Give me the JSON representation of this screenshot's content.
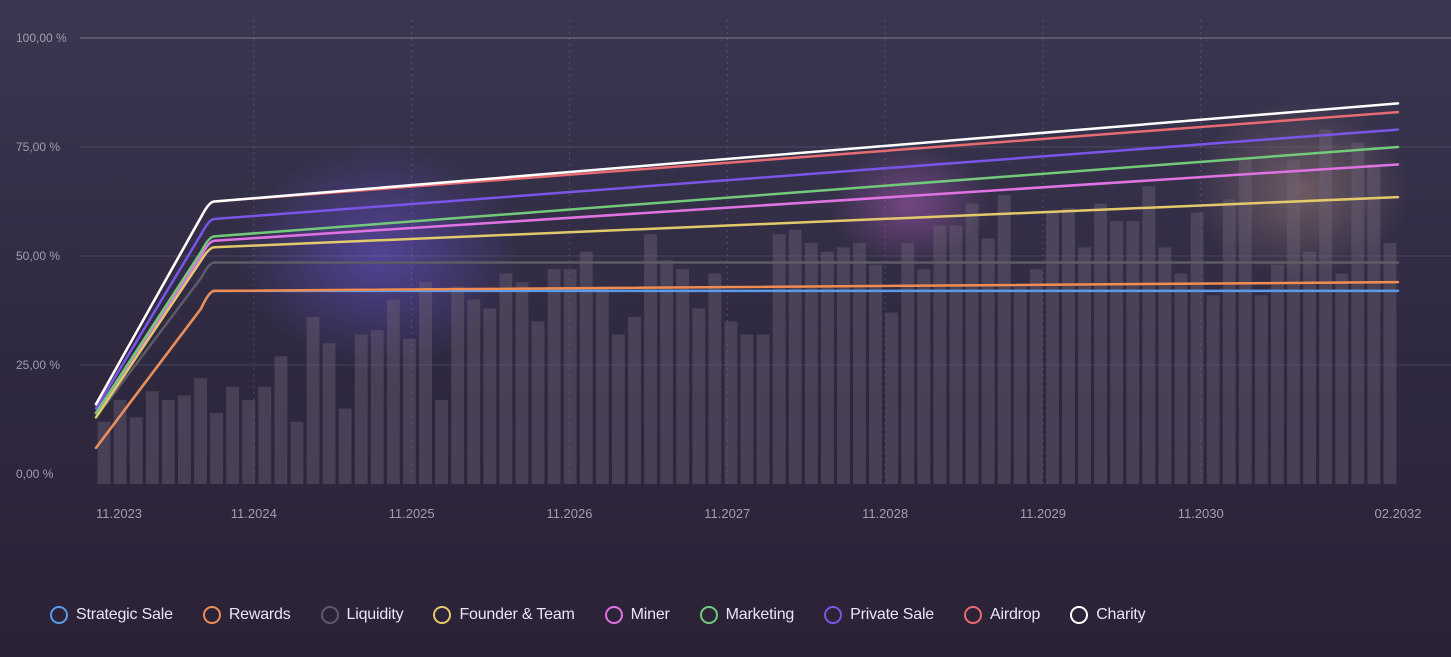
{
  "chart_data": {
    "type": "line",
    "y_unit": "%",
    "ylim": [
      0,
      100
    ],
    "y_ticks": [
      "100,00 %",
      "75,00 %",
      "50,00 %",
      "25,00 %",
      "0,00 %"
    ],
    "y_tick_values": [
      100,
      75,
      50,
      25,
      0
    ],
    "x_ticks": [
      "11.2023",
      "11.2024",
      "11.2025",
      "11.2026",
      "11.2027",
      "11.2028",
      "11.2029",
      "11.2030",
      "02.2032"
    ],
    "x_tick_positions": [
      0,
      12,
      24,
      36,
      48,
      60,
      72,
      84,
      99
    ],
    "x_range": [
      0,
      99
    ],
    "series": [
      {
        "name": "Strategic Sale",
        "color": "#5b9ae8",
        "values": [
          [
            0,
            6
          ],
          [
            8,
            38
          ],
          [
            9,
            42
          ],
          [
            99,
            42
          ]
        ]
      },
      {
        "name": "Rewards",
        "color": "#f08c52",
        "values": [
          [
            0,
            6
          ],
          [
            8,
            38
          ],
          [
            9,
            42
          ],
          [
            99,
            44
          ]
        ]
      },
      {
        "name": "Liquidity",
        "color": "#5e5a66",
        "values": [
          [
            0,
            13
          ],
          [
            8,
            45
          ],
          [
            9,
            48.5
          ],
          [
            99,
            48.5
          ]
        ]
      },
      {
        "name": "Founder & Team",
        "color": "#e3c96b",
        "values": [
          [
            0,
            13
          ],
          [
            8,
            49
          ],
          [
            9,
            52
          ],
          [
            99,
            63.5
          ]
        ]
      },
      {
        "name": "Miner",
        "color": "#e073e3",
        "values": [
          [
            0,
            14
          ],
          [
            8,
            50
          ],
          [
            9,
            53.5
          ],
          [
            99,
            71
          ]
        ]
      },
      {
        "name": "Marketing",
        "color": "#73c97a",
        "values": [
          [
            0,
            14
          ],
          [
            8,
            51
          ],
          [
            9,
            54.5
          ],
          [
            99,
            75
          ]
        ]
      },
      {
        "name": "Private Sale",
        "color": "#7b55e8",
        "values": [
          [
            0,
            15
          ],
          [
            8,
            55
          ],
          [
            9,
            58.5
          ],
          [
            99,
            79
          ]
        ]
      },
      {
        "name": "Airdrop",
        "color": "#e86a72",
        "values": [
          [
            0,
            16
          ],
          [
            8,
            59
          ],
          [
            9,
            62.5
          ],
          [
            99,
            83
          ]
        ]
      },
      {
        "name": "Charity",
        "color": "#ffffff",
        "values": [
          [
            0,
            16
          ],
          [
            8,
            59
          ],
          [
            9,
            62.5
          ],
          [
            99,
            85
          ]
        ]
      }
    ],
    "background_bars": [
      12,
      17,
      13,
      19,
      17,
      18,
      22,
      14,
      20,
      17,
      20,
      27,
      12,
      36,
      30,
      15,
      32,
      33,
      40,
      31,
      44,
      17,
      43,
      40,
      38,
      46,
      44,
      35,
      47,
      47,
      51,
      43,
      32,
      36,
      55,
      49,
      47,
      38,
      46,
      35,
      32,
      32,
      55,
      56,
      53,
      51,
      52,
      53,
      48,
      37,
      53,
      47,
      57,
      57,
      62,
      54,
      64,
      43,
      47,
      60,
      61,
      52,
      62,
      58,
      58,
      66,
      52,
      46,
      60,
      41,
      63,
      72,
      41,
      48,
      72,
      51,
      79,
      46,
      76,
      71,
      53
    ]
  },
  "legend": [
    {
      "label": "Strategic Sale",
      "color": "#5b9ae8",
      "icon": "ring-icon"
    },
    {
      "label": "Rewards",
      "color": "#f08c52",
      "icon": "ring-icon"
    },
    {
      "label": "Liquidity",
      "color": "#5e5a66",
      "icon": "ring-icon"
    },
    {
      "label": "Founder & Team",
      "color": "#e3c96b",
      "icon": "ring-icon"
    },
    {
      "label": "Miner",
      "color": "#e073e3",
      "icon": "ring-icon"
    },
    {
      "label": "Marketing",
      "color": "#73c97a",
      "icon": "ring-icon"
    },
    {
      "label": "Private Sale",
      "color": "#7b55e8",
      "icon": "ring-icon"
    },
    {
      "label": "Airdrop",
      "color": "#e86a72",
      "icon": "ring-icon"
    },
    {
      "label": "Charity",
      "color": "#ffffff",
      "icon": "ring-icon"
    }
  ]
}
